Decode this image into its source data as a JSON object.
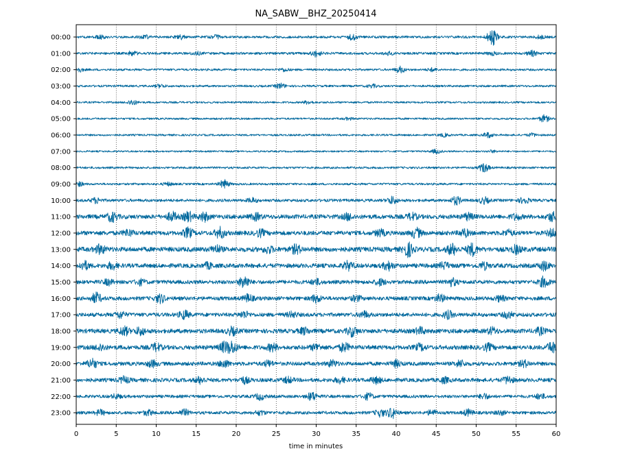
{
  "chart_data": {
    "type": "line",
    "title": "NA_SABW__BHZ_20250414",
    "xlabel": "time in minutes",
    "ylabel": "",
    "xlim": [
      0,
      60
    ],
    "x_ticks": [
      "0",
      "5",
      "10",
      "15",
      "20",
      "25",
      "30",
      "35",
      "40",
      "45",
      "50",
      "55",
      "60"
    ],
    "x_grid": "dotted vertical lines at each 5 minutes",
    "trace_color": "#00689d",
    "rows": [
      {
        "label": "00:00",
        "level": 0.25,
        "events": [
          [
            3,
            0.3
          ],
          [
            8.5,
            0.35
          ],
          [
            13,
            0.4
          ],
          [
            17.5,
            0.3
          ],
          [
            34.5,
            0.5
          ],
          [
            52,
            1.6
          ],
          [
            58,
            0.3
          ]
        ]
      },
      {
        "label": "01:00",
        "level": 0.25,
        "events": [
          [
            7,
            0.4
          ],
          [
            15,
            0.3
          ],
          [
            30,
            0.6
          ],
          [
            39,
            0.3
          ],
          [
            52,
            0.3
          ],
          [
            57,
            0.5
          ]
        ]
      },
      {
        "label": "02:00",
        "level": 0.22,
        "events": [
          [
            0.3,
            0.4
          ],
          [
            26,
            0.3
          ],
          [
            40.5,
            0.6
          ],
          [
            44.5,
            0.3
          ]
        ]
      },
      {
        "label": "03:00",
        "level": 0.22,
        "events": [
          [
            10.5,
            0.3
          ],
          [
            25.5,
            0.5
          ],
          [
            37,
            0.3
          ]
        ]
      },
      {
        "label": "04:00",
        "level": 0.2,
        "events": [
          [
            7,
            0.5
          ],
          [
            29,
            0.3
          ]
        ]
      },
      {
        "label": "05:00",
        "level": 0.2,
        "events": [
          [
            34,
            0.2
          ],
          [
            58.5,
            0.7
          ]
        ]
      },
      {
        "label": "06:00",
        "level": 0.2,
        "events": [
          [
            46,
            0.3
          ],
          [
            51.5,
            0.5
          ],
          [
            57,
            0.3
          ]
        ]
      },
      {
        "label": "07:00",
        "level": 0.18,
        "events": [
          [
            45,
            0.4
          ],
          [
            52,
            0.2
          ]
        ]
      },
      {
        "label": "08:00",
        "level": 0.22,
        "events": [
          [
            51,
            0.9
          ]
        ]
      },
      {
        "label": "09:00",
        "level": 0.22,
        "events": [
          [
            0.3,
            0.4
          ],
          [
            11.5,
            0.3
          ],
          [
            18.5,
            0.8
          ]
        ]
      },
      {
        "label": "10:00",
        "level": 0.3,
        "events": [
          [
            2.5,
            0.5
          ],
          [
            22,
            0.4
          ],
          [
            39.5,
            0.7
          ],
          [
            47.5,
            0.8
          ],
          [
            51,
            0.6
          ],
          [
            56,
            0.6
          ]
        ]
      },
      {
        "label": "11:00",
        "level": 0.45,
        "events": [
          [
            4.5,
            0.9
          ],
          [
            12,
            0.8
          ],
          [
            14,
            0.9
          ],
          [
            16,
            0.8
          ],
          [
            22.5,
            0.6
          ],
          [
            34,
            0.6
          ],
          [
            42,
            0.6
          ],
          [
            49,
            0.6
          ],
          [
            55,
            0.5
          ],
          [
            59.5,
            0.8
          ]
        ]
      },
      {
        "label": "12:00",
        "level": 0.45,
        "events": [
          [
            6.5,
            0.6
          ],
          [
            14,
            0.9
          ],
          [
            18,
            1.0
          ],
          [
            23,
            0.6
          ],
          [
            38,
            0.6
          ],
          [
            42.5,
            0.9
          ],
          [
            48.5,
            0.7
          ],
          [
            54,
            0.5
          ],
          [
            59.5,
            0.7
          ]
        ]
      },
      {
        "label": "13:00",
        "level": 0.5,
        "events": [
          [
            3,
            0.8
          ],
          [
            17.5,
            0.7
          ],
          [
            24,
            0.6
          ],
          [
            27.5,
            0.8
          ],
          [
            41.5,
            1.3
          ],
          [
            47,
            1.0
          ],
          [
            49.5,
            1.1
          ],
          [
            55,
            0.7
          ]
        ]
      },
      {
        "label": "14:00",
        "level": 0.45,
        "events": [
          [
            1,
            0.8
          ],
          [
            4.5,
            0.6
          ],
          [
            16.5,
            0.5
          ],
          [
            34,
            0.8
          ],
          [
            39,
            0.8
          ],
          [
            46,
            0.6
          ],
          [
            51,
            0.6
          ],
          [
            58.5,
            0.8
          ]
        ]
      },
      {
        "label": "15:00",
        "level": 0.4,
        "events": [
          [
            4,
            0.5
          ],
          [
            8,
            0.5
          ],
          [
            21,
            1.2
          ],
          [
            30,
            0.5
          ],
          [
            38,
            0.6
          ],
          [
            47,
            0.7
          ],
          [
            58.5,
            1.0
          ]
        ]
      },
      {
        "label": "16:00",
        "level": 0.4,
        "events": [
          [
            2.5,
            1.0
          ],
          [
            10.5,
            0.8
          ],
          [
            21.5,
            0.7
          ],
          [
            30,
            0.7
          ],
          [
            35,
            0.5
          ],
          [
            45.5,
            0.7
          ],
          [
            53,
            0.5
          ]
        ]
      },
      {
        "label": "17:00",
        "level": 0.4,
        "events": [
          [
            5.5,
            0.6
          ],
          [
            13.5,
            0.8
          ],
          [
            21,
            0.6
          ],
          [
            27,
            0.5
          ],
          [
            36,
            0.6
          ],
          [
            46.5,
            0.7
          ],
          [
            54,
            0.6
          ]
        ]
      },
      {
        "label": "18:00",
        "level": 0.45,
        "events": [
          [
            6,
            0.8
          ],
          [
            8,
            0.7
          ],
          [
            19.5,
            0.7
          ],
          [
            28.5,
            0.6
          ],
          [
            34.5,
            0.9
          ],
          [
            43,
            0.6
          ],
          [
            52,
            0.6
          ],
          [
            58,
            0.6
          ]
        ]
      },
      {
        "label": "19:00",
        "level": 0.45,
        "events": [
          [
            3,
            0.6
          ],
          [
            10,
            0.7
          ],
          [
            18.5,
            0.9
          ],
          [
            19.5,
            1.1
          ],
          [
            24.5,
            0.7
          ],
          [
            30,
            0.6
          ],
          [
            33.5,
            0.8
          ],
          [
            43,
            0.6
          ],
          [
            51.5,
            0.6
          ],
          [
            59.5,
            1.0
          ]
        ]
      },
      {
        "label": "20:00",
        "level": 0.4,
        "events": [
          [
            2,
            0.9
          ],
          [
            9.5,
            0.6
          ],
          [
            18.5,
            0.7
          ],
          [
            24,
            0.5
          ],
          [
            32,
            0.6
          ],
          [
            40,
            0.6
          ],
          [
            48,
            0.6
          ],
          [
            56,
            0.6
          ]
        ]
      },
      {
        "label": "21:00",
        "level": 0.4,
        "events": [
          [
            6,
            0.6
          ],
          [
            15.5,
            0.6
          ],
          [
            21,
            0.6
          ],
          [
            26.5,
            0.5
          ],
          [
            33,
            0.5
          ],
          [
            37.5,
            0.6
          ],
          [
            46,
            0.5
          ],
          [
            54,
            0.7
          ]
        ]
      },
      {
        "label": "22:00",
        "level": 0.32,
        "events": [
          [
            5,
            0.4
          ],
          [
            23,
            0.6
          ],
          [
            29.5,
            0.8
          ],
          [
            36.5,
            0.6
          ],
          [
            51,
            0.5
          ],
          [
            58,
            0.5
          ]
        ]
      },
      {
        "label": "23:00",
        "level": 0.32,
        "events": [
          [
            3,
            0.5
          ],
          [
            9,
            0.5
          ],
          [
            13.5,
            0.6
          ],
          [
            23,
            0.4
          ],
          [
            38,
            0.7
          ],
          [
            39.5,
            1.0
          ],
          [
            44.5,
            0.5
          ],
          [
            49,
            0.6
          ],
          [
            53,
            0.4
          ]
        ]
      }
    ]
  }
}
